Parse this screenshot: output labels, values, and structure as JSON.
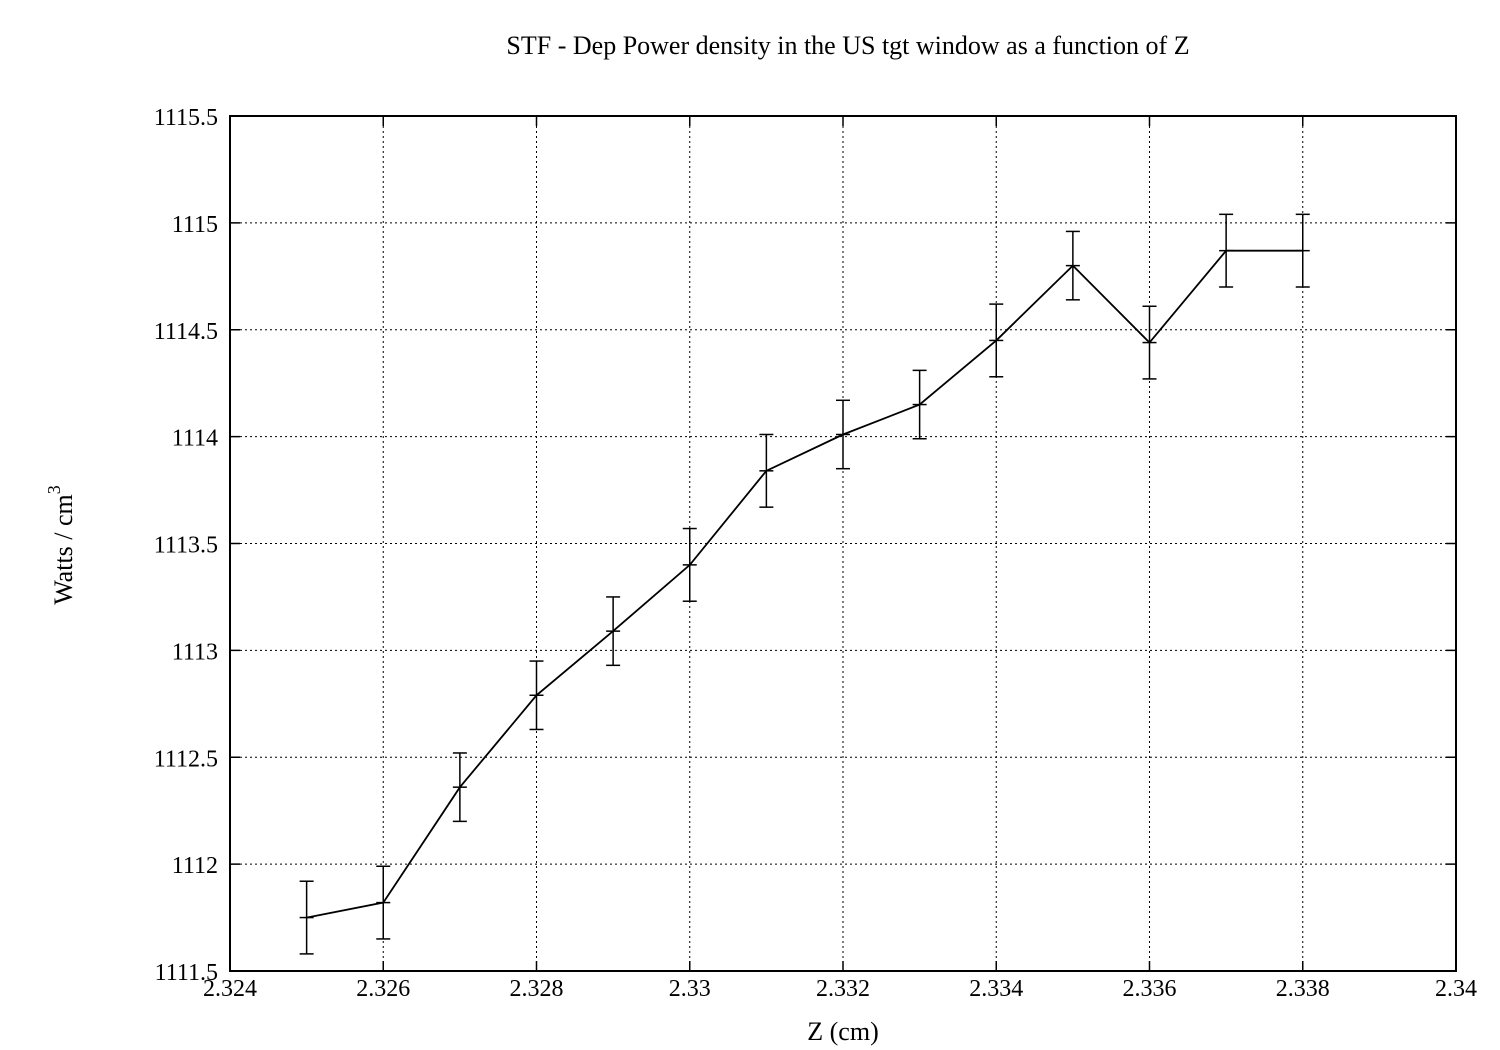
{
  "chart_data": {
    "type": "line",
    "title": "STF - Dep Power density in the US tgt window as a function of Z",
    "xlabel": "Z (cm)",
    "ylabel": "Watts  / cm",
    "ylabel_superscript": "3",
    "xlim": [
      2.324,
      2.34
    ],
    "ylim": [
      1111.5,
      1115.5
    ],
    "grid": true,
    "x_ticks": [
      "2.324",
      "2.326",
      "2.328",
      "2.33",
      "2.332",
      "2.334",
      "2.336",
      "2.338",
      "2.34"
    ],
    "y_ticks": [
      "1111.5",
      "1112",
      "1112.5",
      "1113",
      "1113.5",
      "1114",
      "1114.5",
      "1115",
      "1115.5"
    ],
    "series": [
      {
        "x": [
          2.325,
          2.326,
          2.327,
          2.328,
          2.329,
          2.33,
          2.331,
          2.332,
          2.333,
          2.334,
          2.335,
          2.336,
          2.337,
          2.338
        ],
        "y": [
          1111.75,
          1111.82,
          1112.36,
          1112.79,
          1113.09,
          1113.4,
          1113.84,
          1114.01,
          1114.15,
          1114.45,
          1114.8,
          1114.44,
          1114.87,
          1114.87
        ],
        "err": [
          0.17,
          0.17,
          0.16,
          0.16,
          0.16,
          0.17,
          0.17,
          0.16,
          0.16,
          0.17,
          0.16,
          0.17,
          0.17,
          0.17
        ]
      }
    ]
  }
}
